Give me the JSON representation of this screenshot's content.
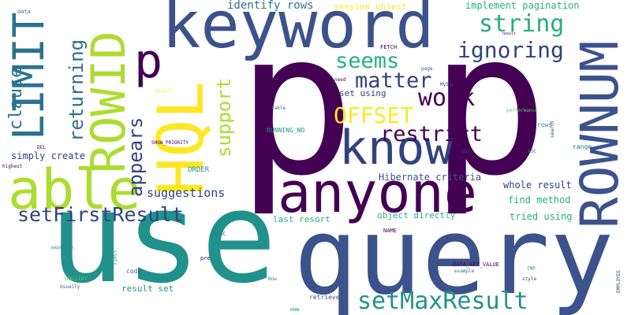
{
  "palette": {
    "dark_purple": "#440154",
    "indigo": "#3b528b",
    "navy": "#31427e",
    "blue": "#2c728e",
    "teal": "#21918c",
    "sea_green": "#28ae80",
    "green": "#5ec962",
    "lime": "#addc30",
    "yellow": "#fde725"
  },
  "words": [
    "p",
    "p",
    "use",
    "query",
    "keyword",
    "anyone",
    "know",
    "able",
    "ROWNUM",
    "LIMIT",
    "ROWID",
    "HQL",
    "p",
    "setMaxResult",
    "setFirstResult",
    "ignoring",
    "string",
    "restrict",
    "matter",
    "seems",
    "work",
    "OFFSET",
    "clause",
    "returning",
    "appears",
    "support",
    "suggestions",
    "identify rows",
    "session object",
    "implement pagination",
    "simply create",
    "Hibernate criteria",
    "whole result",
    "find method",
    "tried using",
    "last resort",
    "object directly",
    "result set",
    "set using",
    "ORDER",
    "RUNNING_NO",
    "SHOW_PRIORITY",
    "DESC",
    "NAME",
    "DATA_KEY_VALUE",
    "FETCH",
    "need",
    "MySQL",
    "DB2",
    "ASC",
    "range",
    "rows",
    "performance",
    "search",
    "page",
    "result",
    "table",
    "SELECT",
    "DEL",
    "highest",
    "separate",
    "SMALLINT",
    "Usually",
    "code",
    "pre",
    "bad",
    "Now",
    "example",
    "TMP",
    "style",
    "EMPLOYEE",
    "retrieve",
    "RANK",
    "FIRST",
    "data"
  ]
}
